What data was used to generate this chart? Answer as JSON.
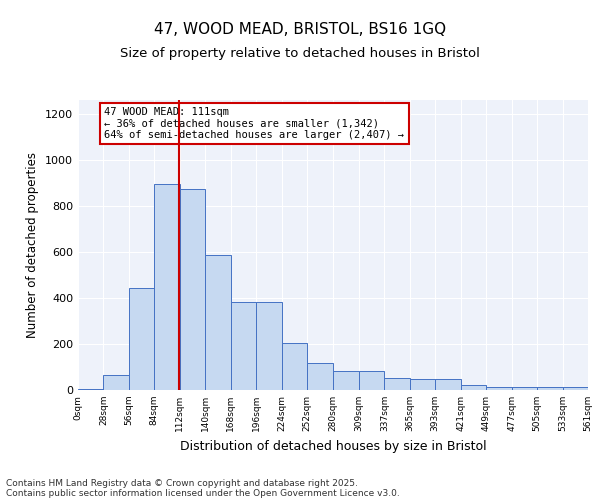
{
  "title1": "47, WOOD MEAD, BRISTOL, BS16 1GQ",
  "title2": "Size of property relative to detached houses in Bristol",
  "xlabel": "Distribution of detached houses by size in Bristol",
  "ylabel": "Number of detached properties",
  "annotation_line1": "47 WOOD MEAD: 111sqm",
  "annotation_line2": "← 36% of detached houses are smaller (1,342)",
  "annotation_line3": "64% of semi-detached houses are larger (2,407) →",
  "bar_edges": [
    0,
    28,
    56,
    84,
    112,
    140,
    168,
    196,
    224,
    252,
    280,
    309,
    337,
    365,
    393,
    421,
    449,
    477,
    505,
    533,
    561
  ],
  "bar_heights": [
    5,
    65,
    445,
    895,
    875,
    585,
    382,
    382,
    205,
    117,
    82,
    82,
    50,
    48,
    48,
    20,
    15,
    15,
    15,
    12
  ],
  "bar_color": "#c6d9f1",
  "bar_edge_color": "#4472c4",
  "vline_x": 111,
  "vline_color": "#cc0000",
  "annotation_box_color": "#cc0000",
  "ylim": [
    0,
    1260
  ],
  "yticks": [
    0,
    200,
    400,
    600,
    800,
    1000,
    1200
  ],
  "tick_labels": [
    "0sqm",
    "28sqm",
    "56sqm",
    "84sqm",
    "112sqm",
    "140sqm",
    "168sqm",
    "196sqm",
    "224sqm",
    "252sqm",
    "280sqm",
    "309sqm",
    "337sqm",
    "365sqm",
    "393sqm",
    "421sqm",
    "449sqm",
    "477sqm",
    "505sqm",
    "533sqm",
    "561sqm"
  ],
  "bg_color": "#eef2fa",
  "footer1": "Contains HM Land Registry data © Crown copyright and database right 2025.",
  "footer2": "Contains public sector information licensed under the Open Government Licence v3.0."
}
